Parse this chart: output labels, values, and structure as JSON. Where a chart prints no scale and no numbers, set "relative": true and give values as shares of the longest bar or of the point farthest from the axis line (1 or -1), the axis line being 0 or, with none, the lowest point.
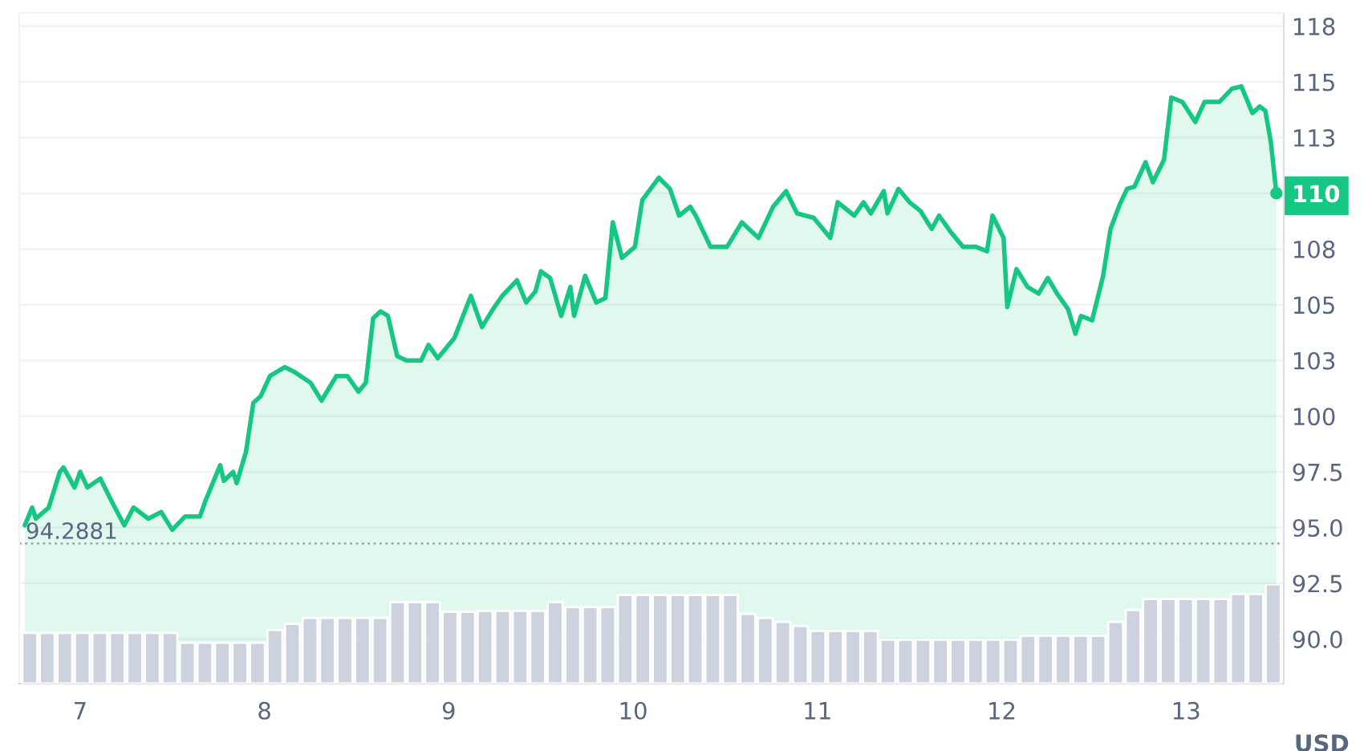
{
  "chart_data": [
    {
      "type": "area",
      "ylabel": "USD",
      "grid": "y",
      "legend": false,
      "xlim": [
        6.67,
        13.53
      ],
      "xticks": [
        7,
        8,
        9,
        10,
        11,
        12,
        13
      ],
      "ylim": [
        88,
        118.1
      ],
      "yticks": [
        {
          "value": 117.5,
          "label": "118"
        },
        115,
        {
          "value": 112.5,
          "label": "113"
        },
        110,
        {
          "value": 107.5,
          "label": "108"
        },
        105,
        {
          "value": 102.5,
          "label": "103"
        },
        100,
        97.5,
        {
          "value": 95,
          "label": "95.0"
        },
        92.5,
        {
          "value": 90,
          "label": "90.0"
        }
      ],
      "ref_lines": [
        {
          "axis": "y",
          "value": 94.2881,
          "label": "94.2881",
          "line_style": "dotted",
          "color": "#a0a6b2"
        }
      ],
      "series": [
        {
          "color": "#16c784",
          "x": [
            6.7,
            6.74,
            6.76,
            6.83,
            6.89,
            6.91,
            6.97,
            7.0,
            7.04,
            7.11,
            7.17,
            7.24,
            7.29,
            7.37,
            7.44,
            7.5,
            7.57,
            7.65,
            7.68,
            7.76,
            7.78,
            7.83,
            7.85,
            7.9,
            7.94,
            7.98,
            8.03,
            8.11,
            8.16,
            8.25,
            8.31,
            8.39,
            8.45,
            8.51,
            8.55,
            8.59,
            8.63,
            8.67,
            8.72,
            8.77,
            8.85,
            8.89,
            8.94,
            9.03,
            9.12,
            9.18,
            9.24,
            9.29,
            9.37,
            9.42,
            9.47,
            9.5,
            9.55,
            9.61,
            9.66,
            9.68,
            9.74,
            9.8,
            9.85,
            9.89,
            9.94,
            10.01,
            10.05,
            10.14,
            10.2,
            10.25,
            10.31,
            10.34,
            10.42,
            10.51,
            10.59,
            10.68,
            10.76,
            10.83,
            10.89,
            10.98,
            11.07,
            11.11,
            11.2,
            11.25,
            11.29,
            11.36,
            11.38,
            11.44,
            11.5,
            11.56,
            11.62,
            11.66,
            11.72,
            11.79,
            11.86,
            11.92,
            11.95,
            12.01,
            12.03,
            12.08,
            12.14,
            12.2,
            12.25,
            12.3,
            12.36,
            12.4,
            12.43,
            12.49,
            12.55,
            12.59,
            12.64,
            12.68,
            12.72,
            12.78,
            12.82,
            12.88,
            12.92,
            12.98,
            13.05,
            13.1,
            13.18,
            13.25,
            13.3,
            13.36,
            13.4,
            13.43,
            13.46,
            13.49
          ],
          "values": [
            95.1,
            95.9,
            95.4,
            95.9,
            97.5,
            97.7,
            96.8,
            97.5,
            96.8,
            97.2,
            96.2,
            95.1,
            95.9,
            95.4,
            95.7,
            94.9,
            95.5,
            95.5,
            96.2,
            97.8,
            97.1,
            97.5,
            97.0,
            98.4,
            100.6,
            100.9,
            101.8,
            102.2,
            102.0,
            101.5,
            100.7,
            101.8,
            101.8,
            101.1,
            101.5,
            104.4,
            104.7,
            104.5,
            102.7,
            102.5,
            102.5,
            103.2,
            102.6,
            103.5,
            105.4,
            104.0,
            104.8,
            105.4,
            106.1,
            105.1,
            105.6,
            106.5,
            106.2,
            104.5,
            105.8,
            104.5,
            106.3,
            105.1,
            105.3,
            108.7,
            107.1,
            107.6,
            109.7,
            110.7,
            110.2,
            109.0,
            109.4,
            109.0,
            107.6,
            107.6,
            108.7,
            108.0,
            109.4,
            110.1,
            109.1,
            108.9,
            108.0,
            109.6,
            109.0,
            109.6,
            109.1,
            110.1,
            109.1,
            110.2,
            109.6,
            109.2,
            108.4,
            109.0,
            108.3,
            107.6,
            107.6,
            107.4,
            109.0,
            108.0,
            104.9,
            106.6,
            105.8,
            105.5,
            106.2,
            105.5,
            104.8,
            103.7,
            104.5,
            104.3,
            106.3,
            108.4,
            109.5,
            110.2,
            110.3,
            111.4,
            110.5,
            111.5,
            114.3,
            114.1,
            113.2,
            114.1,
            114.1,
            114.7,
            114.8,
            113.6,
            113.9,
            113.7,
            112.3,
            110.0
          ]
        }
      ]
    },
    {
      "type": "bar",
      "relative": true,
      "categories": [
        null,
        null,
        null,
        null,
        null,
        null,
        null,
        null,
        null,
        null,
        null,
        null,
        null,
        null,
        null,
        null,
        null,
        null,
        null,
        null,
        null,
        null,
        null,
        null,
        null,
        null,
        null,
        null,
        null,
        null,
        null,
        null,
        null,
        null,
        null,
        null,
        null,
        null,
        null,
        null,
        null,
        null,
        null,
        null,
        null,
        null,
        null,
        null,
        null,
        null,
        null,
        null,
        null,
        null,
        null,
        null,
        null,
        null,
        null,
        null,
        null,
        null,
        null,
        null,
        null,
        null,
        null,
        null,
        null,
        null,
        null,
        null
      ],
      "color": "#cdd2df",
      "values": [
        0.51,
        0.51,
        0.51,
        0.51,
        0.51,
        0.51,
        0.51,
        0.51,
        0.51,
        0.41,
        0.41,
        0.41,
        0.41,
        0.41,
        0.54,
        0.6,
        0.66,
        0.66,
        0.66,
        0.66,
        0.66,
        0.82,
        0.82,
        0.82,
        0.72,
        0.72,
        0.73,
        0.73,
        0.73,
        0.73,
        0.82,
        0.77,
        0.77,
        0.77,
        0.89,
        0.89,
        0.89,
        0.89,
        0.89,
        0.89,
        0.89,
        0.7,
        0.66,
        0.62,
        0.58,
        0.53,
        0.53,
        0.53,
        0.53,
        0.44,
        0.44,
        0.44,
        0.44,
        0.44,
        0.44,
        0.44,
        0.44,
        0.48,
        0.48,
        0.48,
        0.48,
        0.48,
        0.62,
        0.74,
        0.85,
        0.85,
        0.85,
        0.85,
        0.85,
        0.9,
        0.9,
        1
      ]
    }
  ]
}
